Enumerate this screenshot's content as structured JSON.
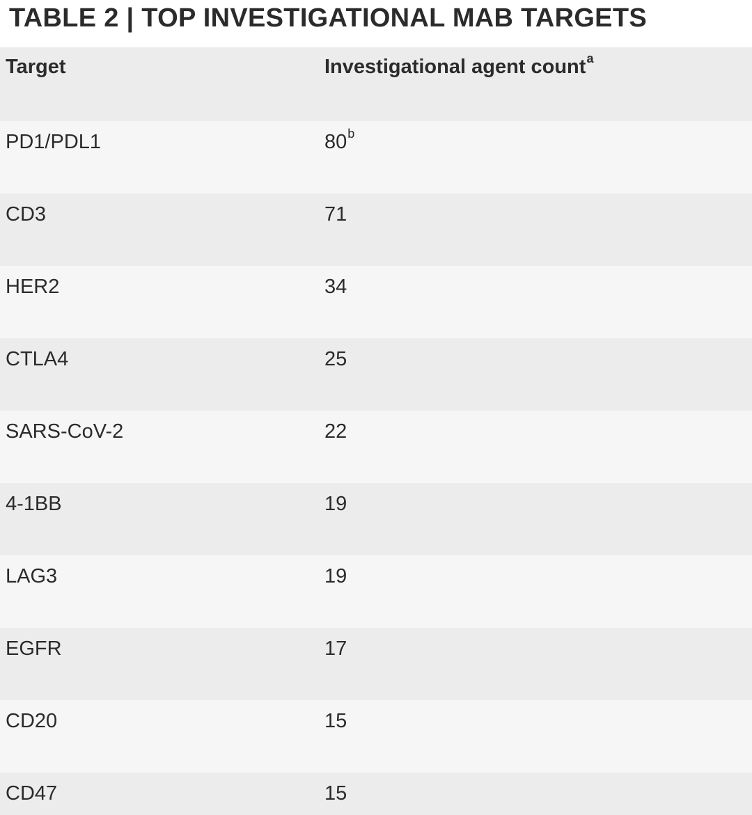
{
  "title": "TABLE 2 | TOP INVESTIGATIONAL MAB TARGETS",
  "table": {
    "headers": {
      "target": "Target",
      "count": "Investigational agent count",
      "count_sup": "a"
    },
    "rows": [
      {
        "target": "PD1/PDL1",
        "count": "80",
        "sup": "b"
      },
      {
        "target": "CD3",
        "count": "71",
        "sup": ""
      },
      {
        "target": "HER2",
        "count": "34",
        "sup": ""
      },
      {
        "target": "CTLA4",
        "count": "25",
        "sup": ""
      },
      {
        "target": "SARS-CoV-2",
        "count": "22",
        "sup": ""
      },
      {
        "target": "4-1BB",
        "count": "19",
        "sup": ""
      },
      {
        "target": "LAG3",
        "count": "19",
        "sup": ""
      },
      {
        "target": "EGFR",
        "count": "17",
        "sup": ""
      },
      {
        "target": "CD20",
        "count": "15",
        "sup": ""
      },
      {
        "target": "CD47",
        "count": "15",
        "sup": ""
      }
    ]
  },
  "colors": {
    "text": "#2b2b2b",
    "row_light": "#f6f6f6",
    "row_dark": "#ececec"
  }
}
